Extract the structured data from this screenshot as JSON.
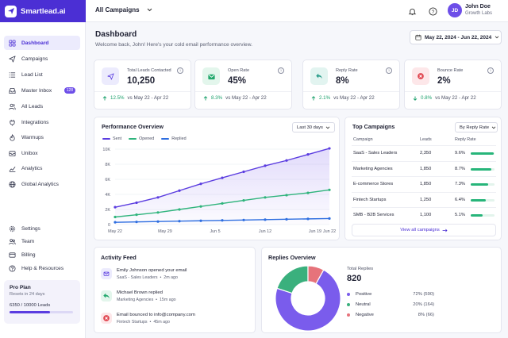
{
  "app": {
    "name": "Smartlead.ai"
  },
  "header": {
    "campaign_select": "All Campaigns",
    "user_initials": "JD",
    "user_name": "John Doe",
    "user_org": "Growth Labs"
  },
  "sidebar": {
    "items": [
      {
        "label": "Dashboard",
        "icon": "grid-icon",
        "active": true
      },
      {
        "label": "Campaigns",
        "icon": "send-icon"
      },
      {
        "label": "Lead List",
        "icon": "list-icon"
      },
      {
        "label": "Master Inbox",
        "icon": "inbox-icon",
        "badge": "128"
      },
      {
        "label": "All Leads",
        "icon": "users-icon"
      },
      {
        "label": "Integrations",
        "icon": "plug-icon"
      },
      {
        "label": "Warmups",
        "icon": "flame-icon"
      },
      {
        "label": "Unibox",
        "icon": "box-icon"
      },
      {
        "label": "Analytics",
        "icon": "chart-icon"
      },
      {
        "label": "Global Analytics",
        "icon": "globe-icon"
      }
    ],
    "bottom_items": [
      {
        "label": "Settings",
        "icon": "gear-icon"
      },
      {
        "label": "Team",
        "icon": "team-icon"
      },
      {
        "label": "Billing",
        "icon": "card-icon"
      },
      {
        "label": "Help & Resources",
        "icon": "help-icon"
      }
    ],
    "plan": {
      "title": "Pro Plan",
      "renews": "Resets in 24 days",
      "leads": "6350 / 10000 Leads",
      "fraction": 0.635
    }
  },
  "page": {
    "title": "Dashboard",
    "subtitle": "Welcome back, John! Here's your cold email performance overview.",
    "date_range": "May 22, 2024 - Jun 22, 2024"
  },
  "stats": [
    {
      "label": "Total Leads Contacted",
      "value": "10,250",
      "change": "12.5%",
      "direction": "up",
      "compare": "vs May 22 - Apr 22",
      "icon": "send-icon",
      "icon_bg": "#ecebfd",
      "icon_color": "#5b3de0"
    },
    {
      "label": "Open Rate",
      "value": "45%",
      "change": "8.3%",
      "direction": "up",
      "compare": "vs May 22 - Apr 22",
      "icon": "mail-open-icon",
      "icon_bg": "#e3f6ec",
      "icon_color": "#22a86c"
    },
    {
      "label": "Reply Rate",
      "value": "8%",
      "change": "2.1%",
      "direction": "up",
      "compare": "vs May 22 - Apr 22",
      "icon": "reply-icon",
      "icon_bg": "#e2f4f0",
      "icon_color": "#2a9d8a"
    },
    {
      "label": "Bounce Rate",
      "value": "2%",
      "change": "0.8%",
      "direction": "down",
      "compare": "vs May 22 - Apr 22",
      "icon": "bounce-icon",
      "icon_bg": "#fde7e9",
      "icon_color": "#e0454f"
    }
  ],
  "performance": {
    "title": "Performance Overview",
    "range": "Last 30 days",
    "legend": [
      {
        "name": "Sent",
        "color": "#5b3de0"
      },
      {
        "name": "Opened",
        "color": "#2fb47c"
      },
      {
        "name": "Replied",
        "color": "#2e6ee0"
      }
    ]
  },
  "chart_data": {
    "type": "line",
    "x": [
      "May 22",
      "May 25",
      "May 28",
      "May 31",
      "Jun 3",
      "Jun 6",
      "Jun 9",
      "Jun 12",
      "Jun 15",
      "Jun 18",
      "Jun 21"
    ],
    "xticks": [
      "May 22",
      "May 29",
      "Jun 5",
      "Jun 12",
      "Jun 19",
      "Jun 22"
    ],
    "xtick_index": [
      0,
      2.33,
      4.67,
      7,
      9.33,
      10
    ],
    "ylim": [
      0,
      10000
    ],
    "yticks": [
      "0",
      "2K",
      "4K",
      "6K",
      "8K",
      "10K"
    ],
    "ytick_values": [
      0,
      2000,
      4000,
      6000,
      8000,
      10000
    ],
    "series": [
      {
        "name": "Sent",
        "color": "#5b3de0",
        "values": [
          2300,
          2900,
          3600,
          4500,
          5400,
          6200,
          7000,
          7800,
          8500,
          9300,
          10100
        ]
      },
      {
        "name": "Opened",
        "color": "#2fb47c",
        "values": [
          1000,
          1300,
          1600,
          2000,
          2400,
          2800,
          3200,
          3600,
          3900,
          4200,
          4600
        ]
      },
      {
        "name": "Replied",
        "color": "#2e6ee0",
        "values": [
          300,
          350,
          400,
          450,
          500,
          550,
          600,
          650,
          700,
          750,
          800
        ]
      }
    ]
  },
  "top_campaigns": {
    "title": "Top Campaigns",
    "sort": "By Reply Rate",
    "headers": {
      "campaign": "Campaign",
      "leads": "Leads",
      "rate": "Reply Rate"
    },
    "rows": [
      {
        "name": "SaaS - Sales Leaders",
        "leads": "2,350",
        "rate": "9.6%",
        "fraction": 0.96
      },
      {
        "name": "Marketing Agencies",
        "leads": "1,850",
        "rate": "8.7%",
        "fraction": 0.87
      },
      {
        "name": "E-commerce Stores",
        "leads": "1,850",
        "rate": "7.3%",
        "fraction": 0.73
      },
      {
        "name": "Fintech Startups",
        "leads": "1,250",
        "rate": "6.4%",
        "fraction": 0.64
      },
      {
        "name": "SMB - B2B Services",
        "leads": "1,100",
        "rate": "5.1%",
        "fraction": 0.51
      }
    ],
    "view_all": "View all campaigns"
  },
  "activity": {
    "title": "Activity Feed",
    "items": [
      {
        "main": "Emily Johnson opened your email",
        "campaign": "SaaS - Sales Leaders",
        "time": "2m ago",
        "icon": "mail-icon",
        "bg": "#ecebfd",
        "color": "#5b3de0"
      },
      {
        "main": "Michael Brown replied",
        "campaign": "Marketing Agencies",
        "time": "15m ago",
        "icon": "reply-icon",
        "bg": "#e3f6ec",
        "color": "#22a86c"
      },
      {
        "main": "Email bounced to info@company.com",
        "campaign": "Fintech Startups",
        "time": "45m ago",
        "icon": "bounce-icon",
        "bg": "#fde7e9",
        "color": "#e0454f"
      }
    ]
  },
  "replies": {
    "title": "Replies Overview",
    "total_label": "Total Replies",
    "total": "820",
    "breakdown": [
      {
        "name": "Positive",
        "value": "72% (590)",
        "share": 72,
        "color": "#7a5cec"
      },
      {
        "name": "Neutral",
        "value": "20% (164)",
        "share": 20,
        "color": "#3ab07d"
      },
      {
        "name": "Negative",
        "value": "8% (66)",
        "share": 8,
        "color": "#e6737b"
      }
    ]
  }
}
